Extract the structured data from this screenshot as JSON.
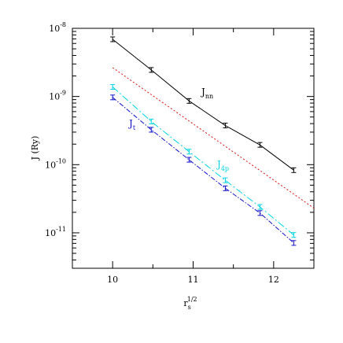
{
  "chart_data": {
    "type": "line",
    "xlabel": "r",
    "xlabel_sub": "s",
    "xlabel_sup": "1/2",
    "ylabel": "J (Ry)",
    "xlim": [
      9.5,
      12.5
    ],
    "ylim_log10": [
      -11.52,
      -8.0
    ],
    "yscale": "log",
    "grid": false,
    "x_ticks": [
      {
        "value": 10,
        "label": "10"
      },
      {
        "value": 11,
        "label": "11"
      },
      {
        "value": 12,
        "label": "12"
      }
    ],
    "y_ticks": [
      {
        "exp": -8,
        "base": "10",
        "sup": "-8"
      },
      {
        "exp": -9,
        "base": "10",
        "sup": "-9"
      },
      {
        "exp": -10,
        "base": "10",
        "sup": "-10"
      },
      {
        "exp": -11,
        "base": "10",
        "sup": "-11"
      }
    ],
    "series": [
      {
        "name": "J",
        "name_sub": "nn",
        "color": "#000000",
        "dash": "",
        "x": [
          10.0,
          10.48,
          10.95,
          11.4,
          11.83,
          12.25
        ],
        "y": [
          6.9e-09,
          2.45e-09,
          8.6e-10,
          3.75e-10,
          1.95e-10,
          8.3e-11
        ],
        "errorbars": true
      },
      {
        "name": "",
        "name_sub": "",
        "color": "#dd1111",
        "dash": "2,2.5",
        "x": [
          10.0,
          12.5
        ],
        "y": [
          2.65e-09,
          2.3e-11
        ],
        "errorbars": false
      },
      {
        "name": "J",
        "name_sub": "4p",
        "color": "#00d4e6",
        "dash": "9,3,2,3",
        "x": [
          10.0,
          10.48,
          10.95,
          11.4,
          11.83,
          12.25
        ],
        "y": [
          1.38e-09,
          4.3e-10,
          1.55e-10,
          5.9e-11,
          2.4e-11,
          9.3e-12
        ],
        "errorbars": true
      },
      {
        "name": "J",
        "name_sub": "t",
        "color": "#1111cc",
        "dash": "6,2,1.5,2",
        "x": [
          10.0,
          10.48,
          10.95,
          11.4,
          11.83,
          12.25
        ],
        "y": [
          9.7e-10,
          3.25e-10,
          1.18e-10,
          4.5e-11,
          1.95e-11,
          7.1e-12
        ],
        "errorbars": true
      }
    ]
  }
}
